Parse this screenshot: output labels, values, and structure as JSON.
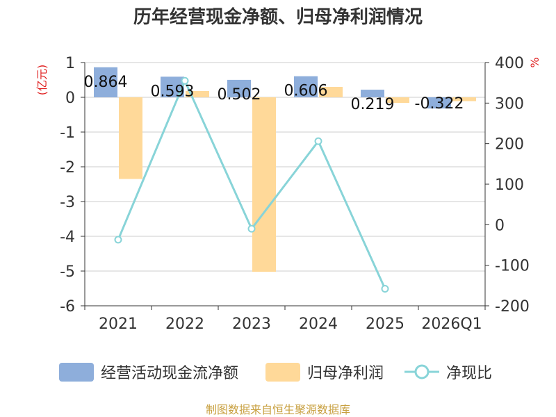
{
  "chart_data": {
    "type": "bar",
    "title": "历年经营现金净额、归母净利润情况",
    "categories": [
      "2021",
      "2022",
      "2023",
      "2024",
      "2025",
      "2026Q1"
    ],
    "series": [
      {
        "name": "经营活动现金流净额",
        "type": "bar",
        "axis": "left",
        "color": "#8eaedb",
        "values": [
          0.864,
          0.593,
          0.502,
          0.606,
          0.219,
          -0.322
        ],
        "labels": [
          "0.864",
          "0.593",
          "0.502",
          "0.606",
          "0.219",
          "-0.322"
        ]
      },
      {
        "name": "归母净利润",
        "type": "bar",
        "axis": "left",
        "color": "#ffd999",
        "values": [
          -2.35,
          0.18,
          -5.02,
          0.3,
          -0.16,
          -0.11
        ]
      },
      {
        "name": "净现比",
        "type": "line",
        "axis": "right",
        "color": "#88d4d8",
        "values": [
          -37,
          355,
          -10,
          206,
          -158,
          null
        ]
      }
    ],
    "y_left": {
      "unit": "(亿元)",
      "ylim": [
        -6,
        1
      ],
      "ticks": [
        1,
        0,
        -1,
        -2,
        -3,
        -4,
        -5,
        -6
      ]
    },
    "y_right": {
      "unit": "%",
      "ylim": [
        -200,
        400
      ],
      "ticks": [
        400,
        300,
        200,
        100,
        0,
        -100,
        -200
      ]
    },
    "legend_position": "bottom",
    "grid": true
  },
  "source": "制图数据来自恒生聚源数据库"
}
